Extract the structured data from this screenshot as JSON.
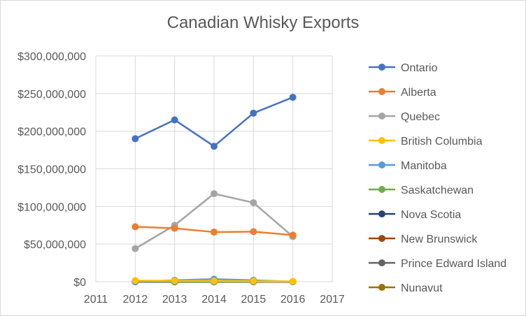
{
  "chart_data": {
    "type": "line",
    "title": "Canadian Whisky Exports",
    "xlabel": "",
    "ylabel": "",
    "x": [
      2012,
      2013,
      2014,
      2015,
      2016
    ],
    "xlim": [
      2011,
      2017
    ],
    "x_ticks": [
      "2011",
      "2012",
      "2013",
      "2014",
      "2015",
      "2016",
      "2017"
    ],
    "ylim": [
      0,
      300000000
    ],
    "y_ticks": [
      "$0",
      "$50,000,000",
      "$100,000,000",
      "$150,000,000",
      "$200,000,000",
      "$250,000,000",
      "$300,000,000"
    ],
    "grid": "vertical-and-horizontal",
    "legend_position": "right",
    "series": [
      {
        "name": "Ontario",
        "color": "#4472c4",
        "values": [
          190000000,
          215000000,
          180000000,
          224000000,
          245000000
        ]
      },
      {
        "name": "Alberta",
        "color": "#ed7d31",
        "values": [
          73000000,
          71000000,
          66000000,
          66500000,
          62000000
        ]
      },
      {
        "name": "Quebec",
        "color": "#a5a5a5",
        "values": [
          44000000,
          75000000,
          117000000,
          105000000,
          60000000
        ]
      },
      {
        "name": "British Columbia",
        "color": "#ffc000",
        "values": [
          1500000,
          1200000,
          1000000,
          800000,
          500000
        ]
      },
      {
        "name": "Manitoba",
        "color": "#5b9bd5",
        "values": [
          0,
          2000000,
          3500000,
          2000000,
          0
        ]
      },
      {
        "name": "Saskatchewan",
        "color": "#70ad47",
        "values": [
          300000,
          400000,
          300000,
          300000,
          200000
        ]
      },
      {
        "name": "Nova Scotia",
        "color": "#264478",
        "values": [
          100000,
          100000,
          100000,
          100000,
          100000
        ]
      },
      {
        "name": "New Brunswick",
        "color": "#9e480e",
        "values": [
          0,
          0,
          0,
          0,
          0
        ]
      },
      {
        "name": "Prince Edward Island",
        "color": "#636363",
        "values": [
          0,
          0,
          0,
          0,
          0
        ]
      },
      {
        "name": "Nunavut",
        "color": "#997300",
        "values": [
          0,
          0,
          0,
          0,
          0
        ]
      }
    ]
  }
}
